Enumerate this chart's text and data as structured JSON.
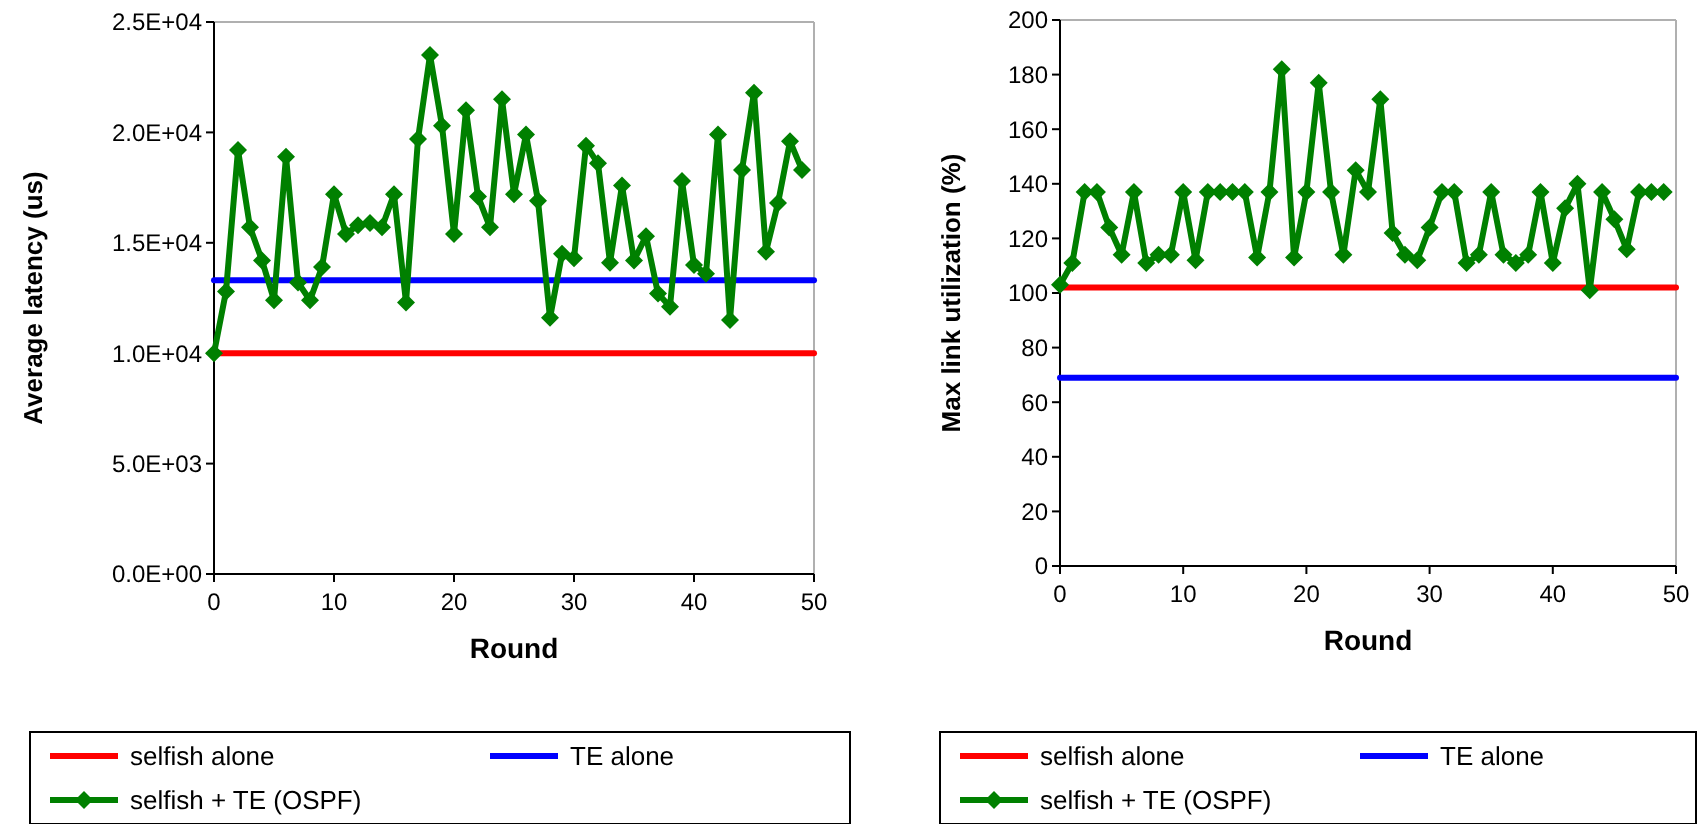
{
  "chart_data": [
    {
      "type": "line",
      "xlabel": "Round",
      "ylabel": "Average latency (us)",
      "xlim": [
        0,
        50
      ],
      "xticks": [
        0,
        10,
        20,
        30,
        40,
        50
      ],
      "ylim": [
        0,
        25000
      ],
      "yticks": [
        {
          "value": 0,
          "label": "0.0E+00"
        },
        {
          "value": 5000,
          "label": "5.0E+03"
        },
        {
          "value": 10000,
          "label": "1.0E+04"
        },
        {
          "value": 15000,
          "label": "1.5E+04"
        },
        {
          "value": 20000,
          "label": "2.0E+04"
        },
        {
          "value": 25000,
          "label": "2.5E+04"
        }
      ],
      "grid": false,
      "legend": "bottom",
      "series": [
        {
          "name": "selfish alone",
          "color": "#ff0000",
          "marker": "none",
          "x": [
            0,
            50
          ],
          "values": [
            10000,
            10000
          ]
        },
        {
          "name": "TE alone",
          "color": "#0000ff",
          "marker": "none",
          "x": [
            0,
            50
          ],
          "values": [
            13300,
            13300
          ]
        },
        {
          "name": "selfish + TE (OSPF)",
          "color": "#008000",
          "marker": "diamond",
          "x": [
            0,
            1,
            2,
            3,
            4,
            5,
            6,
            7,
            8,
            9,
            10,
            11,
            12,
            13,
            14,
            15,
            16,
            17,
            18,
            19,
            20,
            21,
            22,
            23,
            24,
            25,
            26,
            27,
            28,
            29,
            30,
            31,
            32,
            33,
            34,
            35,
            36,
            37,
            38,
            39,
            40,
            41,
            42,
            43,
            44,
            45,
            46,
            47,
            48,
            49
          ],
          "values": [
            10000,
            12800,
            19200,
            15700,
            14200,
            12400,
            18900,
            13200,
            12400,
            13900,
            17200,
            15400,
            15800,
            15900,
            15700,
            17200,
            12300,
            19700,
            23500,
            20300,
            15400,
            21000,
            17100,
            15700,
            21500,
            17200,
            19900,
            16900,
            11600,
            14500,
            14300,
            19400,
            18600,
            14100,
            17600,
            14200,
            15300,
            12700,
            12100,
            17800,
            14000,
            13600,
            19900,
            11500,
            18300,
            21800,
            14600,
            16800,
            19600,
            18300
          ]
        }
      ]
    },
    {
      "type": "line",
      "xlabel": "Round",
      "ylabel": "Max link utilization (%)",
      "xlim": [
        0,
        50
      ],
      "xticks": [
        0,
        10,
        20,
        30,
        40,
        50
      ],
      "ylim": [
        0,
        200
      ],
      "yticks": [
        0,
        20,
        40,
        60,
        80,
        100,
        120,
        140,
        160,
        180,
        200
      ],
      "grid": false,
      "legend": "bottom",
      "series": [
        {
          "name": "selfish alone",
          "color": "#ff0000",
          "marker": "none",
          "x": [
            0,
            50
          ],
          "values": [
            102,
            102
          ]
        },
        {
          "name": "TE alone",
          "color": "#0000ff",
          "marker": "none",
          "x": [
            0,
            50
          ],
          "values": [
            69,
            69
          ]
        },
        {
          "name": "selfish + TE (OSPF)",
          "color": "#008000",
          "marker": "diamond",
          "x": [
            0,
            1,
            2,
            3,
            4,
            5,
            6,
            7,
            8,
            9,
            10,
            11,
            12,
            13,
            14,
            15,
            16,
            17,
            18,
            19,
            20,
            21,
            22,
            23,
            24,
            25,
            26,
            27,
            28,
            29,
            30,
            31,
            32,
            33,
            34,
            35,
            36,
            37,
            38,
            39,
            40,
            41,
            42,
            43,
            44,
            45,
            46,
            47,
            48,
            49
          ],
          "values": [
            103,
            111,
            137,
            137,
            124,
            114,
            137,
            111,
            114,
            114,
            137,
            112,
            137,
            137,
            137,
            137,
            113,
            137,
            182,
            113,
            137,
            177,
            137,
            114,
            145,
            137,
            171,
            122,
            114,
            112,
            124,
            137,
            137,
            111,
            114,
            137,
            114,
            111,
            114,
            137,
            111,
            131,
            140,
            101,
            137,
            127,
            116,
            137,
            137,
            137
          ]
        }
      ]
    }
  ]
}
